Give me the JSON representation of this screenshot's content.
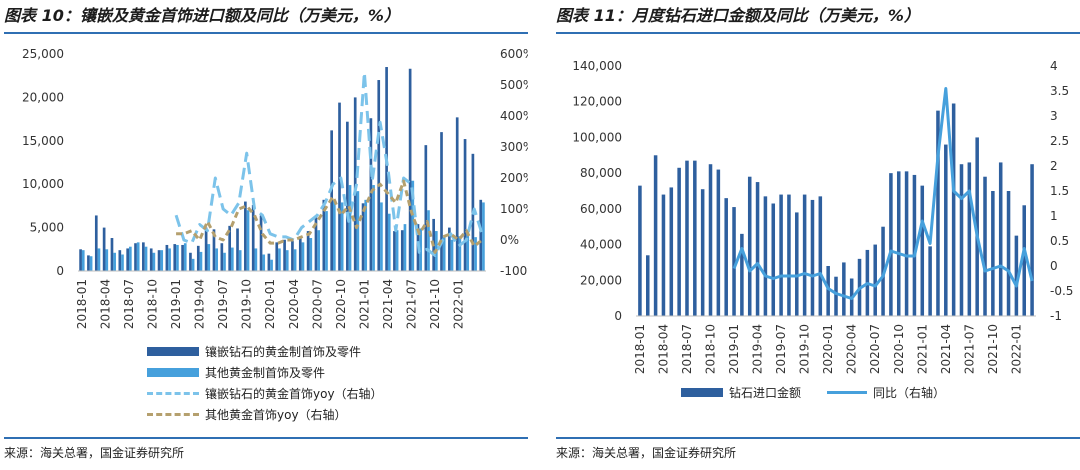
{
  "left": {
    "title": "图表 10：镶嵌及黄金首饰进口额及同比（万美元，%）",
    "source": "来源：海关总署，国金证券研究所"
  },
  "right": {
    "title": "图表 11：月度钻石进口金额及同比（万美元，%）",
    "source": "来源：海关总署，国金证券研究所"
  },
  "colors": {
    "dark_blue": "#2e5f9e",
    "mid_blue": "#46a0dc",
    "light_blue": "#7cc3ea",
    "tan": "#b5a06e",
    "rule_blue": "#2f6fb3",
    "axis_gray": "#bfbfbf"
  },
  "chart_data": [
    {
      "type": "bar",
      "chart": "left",
      "x": [
        "2018-01",
        "2018-02",
        "2018-03",
        "2018-04",
        "2018-05",
        "2018-06",
        "2018-07",
        "2018-08",
        "2018-09",
        "2018-10",
        "2018-11",
        "2018-12",
        "2019-01",
        "2019-02",
        "2019-03",
        "2019-04",
        "2019-05",
        "2019-06",
        "2019-07",
        "2019-08",
        "2019-09",
        "2019-10",
        "2019-11",
        "2019-12",
        "2020-01",
        "2020-02",
        "2020-03",
        "2020-04",
        "2020-05",
        "2020-06",
        "2020-07",
        "2020-08",
        "2020-09",
        "2020-10",
        "2020-11",
        "2020-12",
        "2021-01",
        "2021-02",
        "2021-03",
        "2021-04",
        "2021-05",
        "2021-06",
        "2021-07",
        "2021-08",
        "2021-09",
        "2021-10",
        "2021-11",
        "2021-12",
        "2022-01",
        "2022-02",
        "2022-03",
        "2022-04"
      ],
      "x_tick_labels": [
        "2018-01",
        "2018-04",
        "2018-07",
        "2018-10",
        "2019-01",
        "2019-04",
        "2019-07",
        "2019-10",
        "2020-01",
        "2020-04",
        "2020-07",
        "2020-10",
        "2021-01",
        "2021-04",
        "2021-07",
        "2021-10",
        "2022-01"
      ],
      "y_ticks": [
        "0",
        "5,000",
        "10,000",
        "15,000",
        "20,000",
        "25,000"
      ],
      "ylim": [
        0,
        25000
      ],
      "y2_ticks": [
        "-100%",
        "0%",
        "100%",
        "200%",
        "300%",
        "400%",
        "500%",
        "600%"
      ],
      "y2lim": [
        -100,
        600
      ],
      "legend_position": "bottom",
      "series": [
        {
          "name": "镶嵌钻石的黄金制首饰及零件",
          "kind": "bar",
          "axis": "left",
          "color": "#2e5f9e",
          "values": [
            2500,
            1800,
            6400,
            5000,
            3800,
            2400,
            2600,
            3200,
            3300,
            2600,
            2400,
            3000,
            3100,
            3000,
            2100,
            2900,
            5000,
            4800,
            3200,
            5200,
            4900,
            8000,
            7600,
            6400,
            2000,
            3300,
            3600,
            3500,
            4000,
            4600,
            6300,
            8200,
            16200,
            19400,
            17200,
            20000,
            7800,
            17600,
            22000,
            23500,
            4600,
            4700,
            23300,
            5400,
            14500,
            6000,
            16000,
            5000,
            17700,
            15200,
            13500,
            8200
          ]
        },
        {
          "name": "其他黄金制首饰及零件",
          "kind": "bar",
          "axis": "left",
          "color": "#46a0dc",
          "values": [
            2400,
            1700,
            2600,
            2500,
            2100,
            1900,
            2800,
            3300,
            2800,
            2100,
            2400,
            2600,
            3000,
            3200,
            1400,
            2200,
            3100,
            2600,
            2100,
            2700,
            2400,
            7000,
            2600,
            1900,
            1300,
            2600,
            2400,
            2500,
            3300,
            3800,
            4700,
            6900,
            8200,
            7900,
            9900,
            9200,
            8200,
            9900,
            7900,
            6600,
            4700,
            5400,
            10400,
            4900,
            7000,
            4600,
            3900,
            3600,
            4000,
            4500,
            3900,
            7900
          ]
        },
        {
          "name": "镶嵌钻石的黄金首饰yoy（右轴）",
          "kind": "line",
          "axis": "right",
          "dash": "long",
          "color": "#7cc3ea",
          "values": [
            null,
            null,
            null,
            null,
            null,
            null,
            null,
            null,
            null,
            null,
            null,
            null,
            80,
            0,
            -10,
            50,
            30,
            200,
            100,
            80,
            120,
            280,
            100,
            80,
            20,
            10,
            10,
            0,
            40,
            60,
            80,
            120,
            180,
            200,
            60,
            180,
            540,
            190,
            380,
            230,
            30,
            200,
            180,
            -40,
            -30,
            -50,
            0,
            20,
            -20,
            0,
            100,
            20
          ]
        },
        {
          "name": "其他黄金首饰yoy（右轴）",
          "kind": "line",
          "axis": "right",
          "dash": "short",
          "color": "#b5a06e",
          "values": [
            null,
            null,
            null,
            null,
            null,
            null,
            null,
            null,
            null,
            null,
            null,
            null,
            20,
            20,
            30,
            0,
            60,
            10,
            0,
            40,
            100,
            110,
            80,
            20,
            -10,
            -10,
            0,
            0,
            10,
            20,
            60,
            100,
            140,
            80,
            110,
            40,
            100,
            160,
            180,
            150,
            120,
            190,
            90,
            20,
            60,
            -40,
            10,
            20,
            0,
            30,
            -20,
            0
          ]
        }
      ]
    },
    {
      "type": "bar",
      "chart": "right",
      "x": [
        "2018-01",
        "2018-02",
        "2018-03",
        "2018-04",
        "2018-05",
        "2018-06",
        "2018-07",
        "2018-08",
        "2018-09",
        "2018-10",
        "2018-11",
        "2018-12",
        "2019-01",
        "2019-02",
        "2019-03",
        "2019-04",
        "2019-05",
        "2019-06",
        "2019-07",
        "2019-08",
        "2019-09",
        "2019-10",
        "2019-11",
        "2019-12",
        "2020-01",
        "2020-02",
        "2020-03",
        "2020-04",
        "2020-05",
        "2020-06",
        "2020-07",
        "2020-08",
        "2020-09",
        "2020-10",
        "2020-11",
        "2020-12",
        "2021-01",
        "2021-02",
        "2021-03",
        "2021-04",
        "2021-05",
        "2021-06",
        "2021-07",
        "2021-08",
        "2021-09",
        "2021-10",
        "2021-11",
        "2021-12",
        "2022-01",
        "2022-02",
        "2022-03"
      ],
      "x_tick_labels": [
        "2018-01",
        "2018-04",
        "2018-07",
        "2018-10",
        "2019-01",
        "2019-04",
        "2019-07",
        "2019-10",
        "2020-01",
        "2020-04",
        "2020-07",
        "2020-10",
        "2021-01",
        "2021-04",
        "2021-07",
        "2021-10",
        "2022-01"
      ],
      "y_ticks": [
        "0",
        "20,000",
        "40,000",
        "60,000",
        "80,000",
        "100,000",
        "120,000",
        "140,000"
      ],
      "ylim": [
        0,
        140000
      ],
      "y2_ticks": [
        "-1",
        "-0.5",
        "0",
        "0.5",
        "1",
        "1.5",
        "2",
        "2.5",
        "3",
        "3.5",
        "4"
      ],
      "y2lim": [
        -1,
        4
      ],
      "legend_position": "bottom",
      "series": [
        {
          "name": "钻石进口金额",
          "kind": "bar",
          "axis": "left",
          "color": "#2e5f9e",
          "values": [
            73000,
            34000,
            90000,
            68000,
            72000,
            83000,
            87000,
            87000,
            71000,
            85000,
            82000,
            66000,
            61000,
            46000,
            78000,
            75000,
            67000,
            63000,
            68000,
            68000,
            58000,
            68000,
            65000,
            67000,
            28000,
            22000,
            30000,
            21000,
            32000,
            37000,
            40000,
            50000,
            80000,
            81000,
            81000,
            79000,
            73000,
            39000,
            115000,
            96000,
            119000,
            85000,
            86000,
            100000,
            78000,
            70000,
            86000,
            70000,
            45000,
            62000,
            85000
          ]
        },
        {
          "name": "同比（右轴）",
          "kind": "line",
          "axis": "right",
          "color": "#46a0dc",
          "values": [
            null,
            null,
            null,
            null,
            null,
            null,
            null,
            null,
            null,
            null,
            null,
            null,
            -0.05,
            0.35,
            -0.1,
            0.05,
            -0.2,
            -0.25,
            -0.2,
            -0.2,
            -0.2,
            -0.15,
            -0.2,
            -0.15,
            -0.45,
            -0.55,
            -0.6,
            -0.65,
            -0.45,
            -0.35,
            -0.4,
            -0.2,
            0.3,
            0.25,
            0.2,
            0.2,
            0.9,
            0.45,
            2.2,
            3.55,
            1.5,
            1.35,
            1.5,
            0.6,
            -0.1,
            -0.05,
            0.0,
            -0.1,
            -0.4,
            0.35,
            -0.3
          ]
        }
      ]
    }
  ],
  "legend_left": [
    {
      "label": "镶嵌钻石的黄金制首饰及零件",
      "style": "box",
      "color": "#2e5f9e"
    },
    {
      "label": "其他黄金制首饰及零件",
      "style": "box",
      "color": "#46a0dc"
    },
    {
      "label": "镶嵌钻石的黄金首饰yoy（右轴）",
      "style": "dash",
      "color": "#7cc3ea"
    },
    {
      "label": "其他黄金首饰yoy（右轴）",
      "style": "dash",
      "color": "#b5a06e"
    }
  ],
  "legend_right": [
    {
      "label": "钻石进口金额",
      "style": "box",
      "color": "#2e5f9e"
    },
    {
      "label": "同比（右轴）",
      "style": "line",
      "color": "#46a0dc"
    }
  ]
}
